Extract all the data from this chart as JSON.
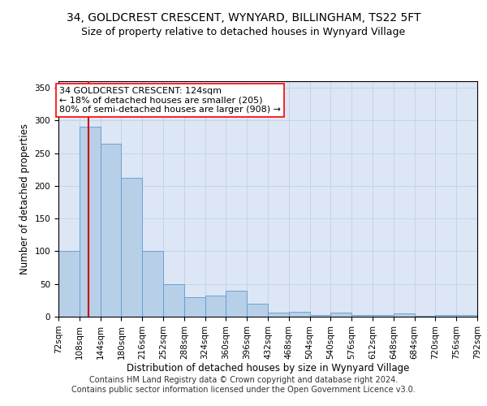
{
  "title": "34, GOLDCREST CRESCENT, WYNYARD, BILLINGHAM, TS22 5FT",
  "subtitle": "Size of property relative to detached houses in Wynyard Village",
  "xlabel": "Distribution of detached houses by size in Wynyard Village",
  "ylabel": "Number of detached properties",
  "footnote1": "Contains HM Land Registry data © Crown copyright and database right 2024.",
  "footnote2": "Contains public sector information licensed under the Open Government Licence v3.0.",
  "annotation_line1": "34 GOLDCREST CRESCENT: 124sqm",
  "annotation_line2": "← 18% of detached houses are smaller (205)",
  "annotation_line3": "80% of semi-detached houses are larger (908) →",
  "property_size": 124,
  "bin_edges": [
    72,
    108,
    144,
    180,
    216,
    252,
    288,
    324,
    360,
    396,
    432,
    468,
    504,
    540,
    576,
    612,
    648,
    684,
    720,
    756,
    792
  ],
  "bar_heights": [
    100,
    290,
    265,
    212,
    101,
    50,
    30,
    32,
    40,
    20,
    6,
    7,
    3,
    6,
    3,
    2,
    5,
    1,
    3,
    3
  ],
  "bar_color": "#b8cfe8",
  "bar_edge_color": "#5b9bd5",
  "vline_color": "#cc0000",
  "vline_x": 124,
  "ylim": [
    0,
    360
  ],
  "yticks": [
    0,
    50,
    100,
    150,
    200,
    250,
    300,
    350
  ],
  "background_color": "#ffffff",
  "axes_bg_color": "#dce6f5",
  "grid_color": "#c5d3e8",
  "title_fontsize": 10,
  "subtitle_fontsize": 9,
  "axis_label_fontsize": 8.5,
  "tick_fontsize": 7.5,
  "annotation_fontsize": 8,
  "footnote_fontsize": 7
}
